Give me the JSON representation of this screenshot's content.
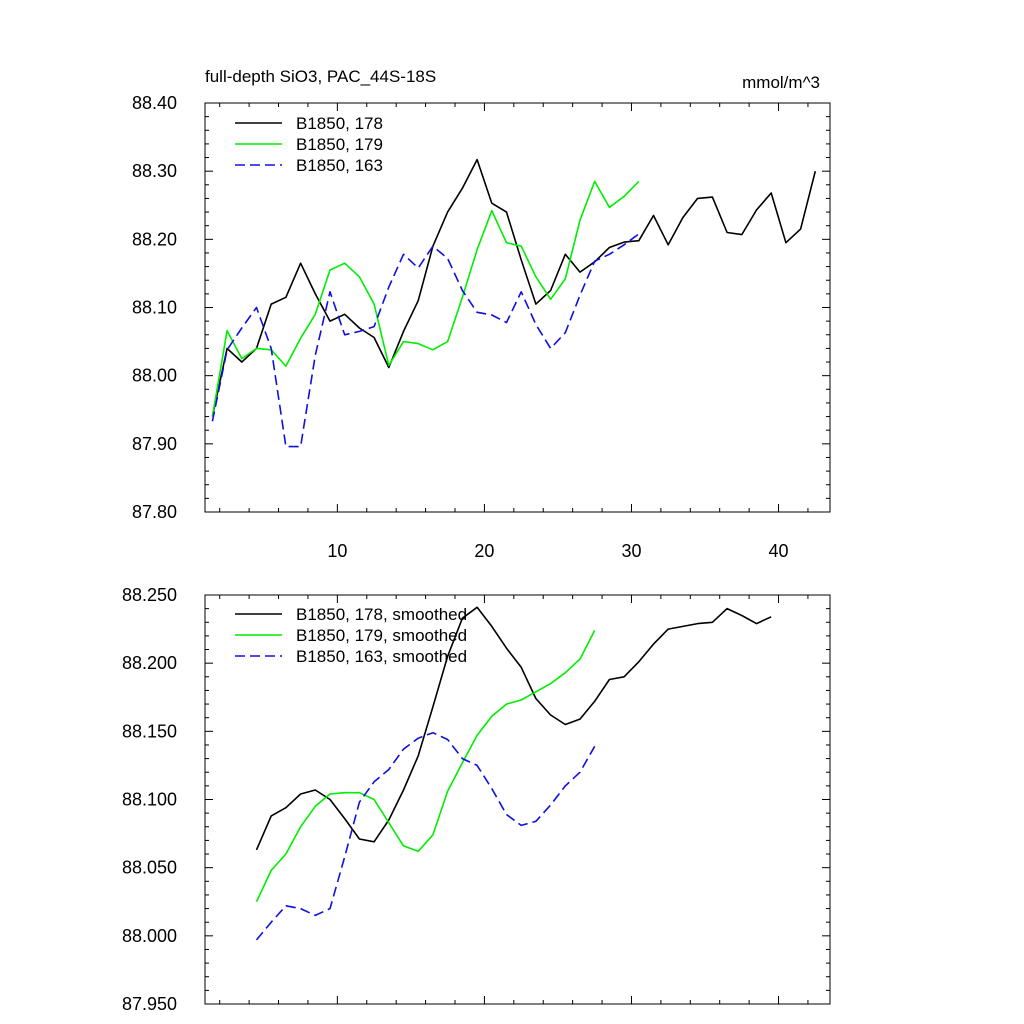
{
  "chart_data": [
    {
      "type": "line",
      "title": "full-depth SiO3, PAC_44S-18S",
      "units": "mmol/m^3",
      "xlim": [
        1,
        43.5
      ],
      "ylim": [
        87.8,
        88.4
      ],
      "y_ticks": [
        87.8,
        87.9,
        88.0,
        88.1,
        88.2,
        88.3,
        88.4
      ],
      "y_tick_labels": [
        "87.80",
        "87.90",
        "88.00",
        "88.10",
        "88.20",
        "88.30",
        "88.40"
      ],
      "x_ticks": [
        10,
        20,
        30,
        40
      ],
      "x_tick_labels": [
        "10",
        "20",
        "30",
        "40"
      ],
      "legend_position": "top-left",
      "series": [
        {
          "name": "B1850, 178",
          "color": "#000000",
          "dash": "solid",
          "x": [
            1.5,
            2.5,
            3.5,
            4.5,
            5.5,
            6.5,
            7.5,
            8.5,
            9.5,
            10.5,
            11.5,
            12.5,
            13.5,
            14.5,
            15.5,
            16.5,
            17.5,
            18.5,
            19.5,
            20.5,
            21.5,
            22.5,
            23.5,
            24.5,
            25.5,
            26.5,
            27.5,
            28.5,
            29.5,
            30.5,
            31.5,
            32.5,
            33.5,
            34.5,
            35.5,
            36.5,
            37.5,
            38.5,
            39.5,
            40.5,
            41.5,
            42.5
          ],
          "values": [
            87.94,
            88.04,
            88.02,
            88.04,
            88.105,
            88.115,
            88.165,
            88.12,
            88.08,
            88.09,
            88.07,
            88.056,
            88.012,
            88.065,
            88.11,
            88.19,
            88.24,
            88.275,
            88.317,
            88.253,
            88.24,
            88.17,
            88.105,
            88.125,
            88.178,
            88.152,
            88.167,
            88.188,
            88.196,
            88.198,
            88.235,
            88.192,
            88.232,
            88.26,
            88.262,
            88.21,
            88.207,
            88.243,
            88.268,
            88.195,
            88.215,
            88.3
          ]
        },
        {
          "name": "B1850, 179",
          "color": "#00ee00",
          "dash": "solid",
          "x": [
            1.5,
            2.5,
            3.5,
            4.5,
            5.5,
            6.5,
            7.5,
            8.5,
            9.5,
            10.5,
            11.5,
            12.5,
            13.5,
            14.5,
            15.5,
            16.5,
            17.5,
            18.5,
            19.5,
            20.5,
            21.5,
            22.5,
            23.5,
            24.5,
            25.5,
            26.5,
            27.5,
            28.5,
            29.5,
            30.5
          ],
          "values": [
            87.94,
            88.066,
            88.025,
            88.04,
            88.038,
            88.014,
            88.055,
            88.09,
            88.155,
            88.165,
            88.145,
            88.105,
            88.015,
            88.05,
            88.047,
            88.038,
            88.05,
            88.115,
            88.185,
            88.242,
            88.195,
            88.19,
            88.145,
            88.112,
            88.142,
            88.228,
            88.285,
            88.247,
            88.263,
            88.285
          ]
        },
        {
          "name": "B1850, 163",
          "color": "#1010e0",
          "dash": "dashed",
          "x": [
            1.5,
            2.5,
            3.5,
            4.5,
            5.5,
            6.5,
            7.5,
            8.5,
            9.5,
            10.5,
            11.5,
            12.5,
            13.5,
            14.5,
            15.5,
            16.5,
            17.5,
            18.5,
            19.5,
            20.5,
            21.5,
            22.5,
            23.5,
            24.5,
            25.5,
            26.5,
            27.5,
            28.5,
            29.5,
            30.5
          ],
          "values": [
            87.933,
            88.038,
            88.07,
            88.1,
            88.04,
            87.896,
            87.896,
            88.03,
            88.123,
            88.06,
            88.065,
            88.072,
            88.13,
            88.178,
            88.158,
            88.19,
            88.172,
            88.125,
            88.093,
            88.089,
            88.078,
            88.123,
            88.075,
            88.04,
            88.063,
            88.118,
            88.168,
            88.178,
            88.192,
            88.208
          ]
        }
      ]
    },
    {
      "type": "line",
      "title": "",
      "xlim": [
        1,
        43.5
      ],
      "ylim": [
        87.95,
        88.25
      ],
      "y_ticks": [
        87.95,
        88.0,
        88.05,
        88.1,
        88.15,
        88.2,
        88.25
      ],
      "y_tick_labels": [
        "87.950",
        "88.000",
        "88.050",
        "88.100",
        "88.150",
        "88.200",
        "88.250"
      ],
      "x_ticks": [
        10,
        20,
        30,
        40
      ],
      "x_tick_labels": [],
      "legend_position": "top-left",
      "series": [
        {
          "name": "B1850, 178, smoothed",
          "color": "#000000",
          "dash": "solid",
          "x": [
            4.5,
            5.5,
            6.5,
            7.5,
            8.5,
            9.5,
            10.5,
            11.5,
            12.5,
            13.5,
            14.5,
            15.5,
            16.5,
            17.5,
            18.5,
            19.5,
            20.5,
            21.5,
            22.5,
            23.5,
            24.5,
            25.5,
            26.5,
            27.5,
            28.5,
            29.5,
            30.5,
            31.5,
            32.5,
            33.5,
            34.5,
            35.5,
            36.5,
            37.5,
            38.5,
            39.5
          ],
          "values": [
            88.063,
            88.088,
            88.094,
            88.104,
            88.107,
            88.1,
            88.086,
            88.071,
            88.069,
            88.085,
            88.107,
            88.132,
            88.168,
            88.205,
            88.233,
            88.241,
            88.227,
            88.211,
            88.197,
            88.174,
            88.162,
            88.155,
            88.159,
            88.172,
            88.188,
            88.19,
            88.201,
            88.214,
            88.225,
            88.227,
            88.229,
            88.23,
            88.24,
            88.235,
            88.229,
            88.234
          ]
        },
        {
          "name": "B1850, 179, smoothed",
          "color": "#00ee00",
          "dash": "solid",
          "x": [
            4.5,
            5.5,
            6.5,
            7.5,
            8.5,
            9.5,
            10.5,
            11.5,
            12.5,
            13.5,
            14.5,
            15.5,
            16.5,
            17.5,
            18.5,
            19.5,
            20.5,
            21.5,
            22.5,
            23.5,
            24.5,
            25.5,
            26.5,
            27.5
          ],
          "values": [
            88.025,
            88.048,
            88.06,
            88.08,
            88.095,
            88.104,
            88.105,
            88.105,
            88.1,
            88.083,
            88.066,
            88.062,
            88.074,
            88.106,
            88.127,
            88.147,
            88.161,
            88.17,
            88.173,
            88.179,
            88.185,
            88.193,
            88.203,
            88.224
          ]
        },
        {
          "name": "B1850, 163, smoothed",
          "color": "#1010e0",
          "dash": "dashed",
          "x": [
            4.5,
            5.5,
            6.5,
            7.5,
            8.5,
            9.5,
            10.5,
            11.5,
            12.5,
            13.5,
            14.5,
            15.5,
            16.5,
            17.5,
            18.5,
            19.5,
            20.5,
            21.5,
            22.5,
            23.5,
            24.5,
            25.5,
            26.5,
            27.5
          ],
          "values": [
            87.997,
            88.01,
            88.022,
            88.02,
            88.015,
            88.02,
            88.058,
            88.098,
            88.113,
            88.122,
            88.137,
            88.145,
            88.149,
            88.144,
            88.13,
            88.125,
            88.108,
            88.089,
            88.081,
            88.084,
            88.096,
            88.11,
            88.12,
            88.139
          ]
        }
      ]
    }
  ]
}
